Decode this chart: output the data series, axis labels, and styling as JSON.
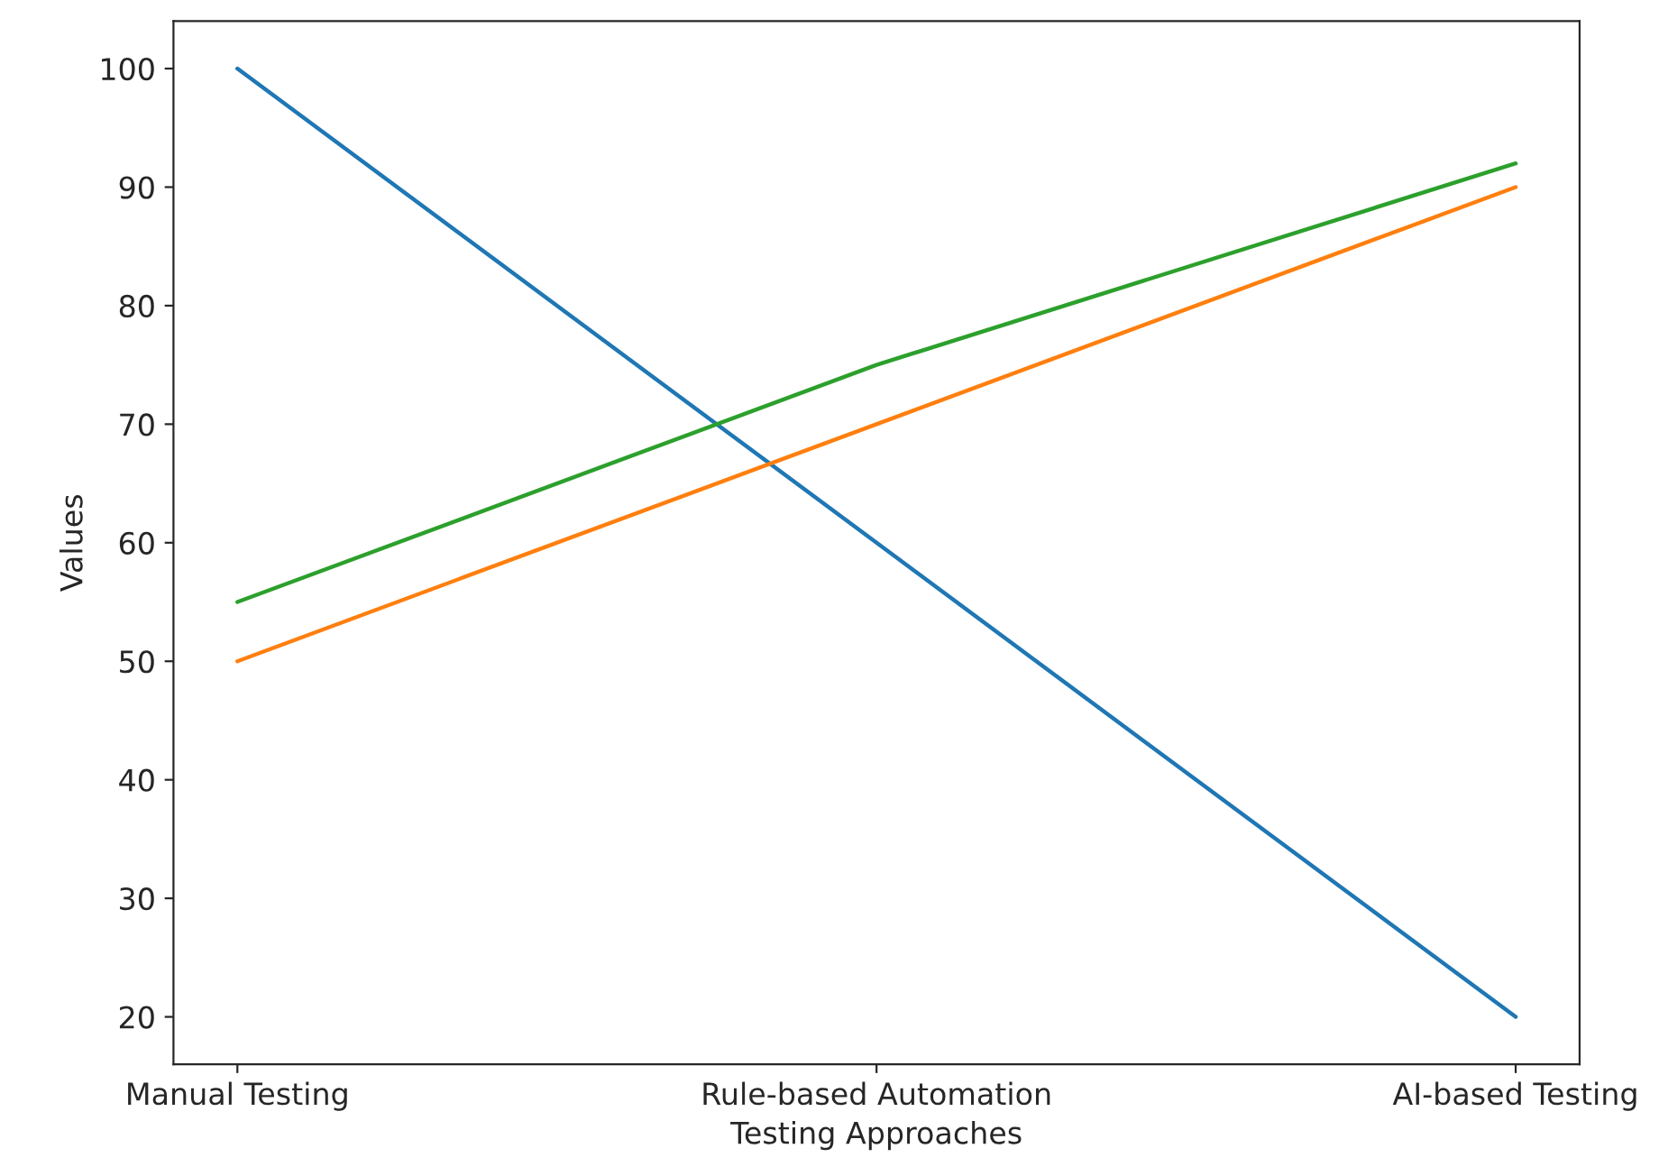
{
  "chart_data": {
    "type": "line",
    "xlabel": "Testing Approaches",
    "ylabel": "Values",
    "categories": [
      "Manual Testing",
      "Rule-based Automation",
      "AI-based Testing"
    ],
    "series": [
      {
        "color": "#1f77b4",
        "values": [
          100,
          60,
          20
        ]
      },
      {
        "color": "#ff7f0e",
        "values": [
          50,
          70,
          90
        ]
      },
      {
        "color": "#2ca02c",
        "values": [
          55,
          75,
          92
        ]
      }
    ],
    "ylim": [
      16,
      104
    ],
    "yticks": [
      20,
      30,
      40,
      50,
      60,
      70,
      80,
      90,
      100
    ],
    "grid": false,
    "legend": false,
    "marker": "none",
    "line_style": "solid"
  }
}
